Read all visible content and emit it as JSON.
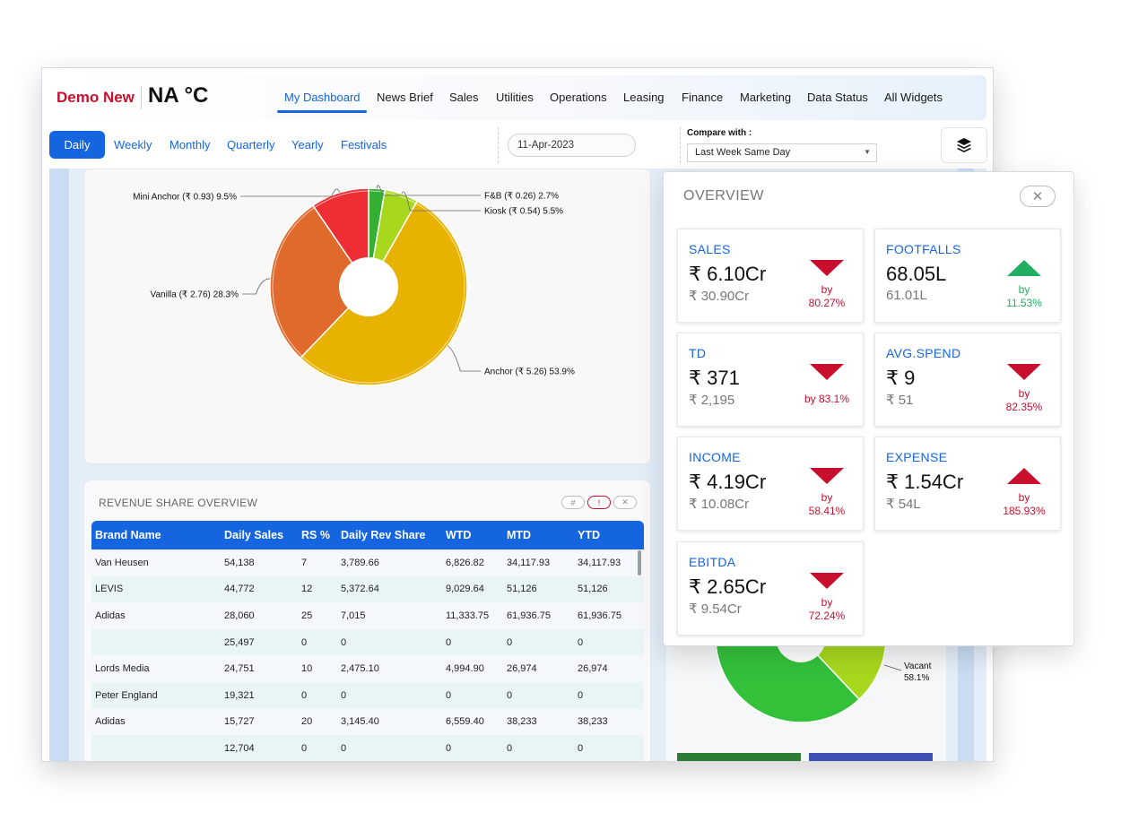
{
  "header": {
    "brand": "Demo New",
    "weather": "NA °C",
    "tabs": [
      {
        "label": "My Dashboard",
        "active": true
      },
      {
        "label": "News Brief"
      },
      {
        "label": "Sales"
      },
      {
        "label": "Utilities"
      },
      {
        "label": "Operations"
      },
      {
        "label": "Leasing"
      },
      {
        "label": "Finance"
      },
      {
        "label": "Marketing"
      },
      {
        "label": "Data Status"
      },
      {
        "label": "All Widgets"
      }
    ]
  },
  "periods": [
    "Daily",
    "Weekly",
    "Monthly",
    "Quarterly",
    "Yearly",
    "Festivals"
  ],
  "selected_period": "Daily",
  "date": "11-Apr-2023",
  "compare": {
    "label": "Compare with :",
    "value": "Last Week Same Day"
  },
  "pie_chart": {
    "slices": [
      {
        "name": "F&B",
        "value": 0.26,
        "pct": 2.7,
        "color": "#33b033",
        "label": "F&B (₹ 0.26) 2.7%"
      },
      {
        "name": "Kiosk",
        "value": 0.54,
        "pct": 5.5,
        "color": "#a8d81e",
        "label": "Kiosk (₹ 0.54) 5.5%"
      },
      {
        "name": "Anchor",
        "value": 5.26,
        "pct": 53.9,
        "color": "#e8b200",
        "label": "Anchor (₹ 5.26) 53.9%"
      },
      {
        "name": "Vanilla",
        "value": 2.76,
        "pct": 28.3,
        "color": "#e06a2c",
        "label": "Vanilla (₹ 2.76) 28.3%"
      },
      {
        "name": "Mini Anchor",
        "value": 0.93,
        "pct": 9.5,
        "color": "#ee2e35",
        "label": "Mini Anchor (₹ 0.93) 9.5%"
      }
    ]
  },
  "revenue_share": {
    "title": "REVENUE SHARE OVERVIEW",
    "controls": [
      "#",
      "!",
      "✕"
    ],
    "columns": [
      "Brand Name",
      "Daily Sales",
      "RS %",
      "Daily Rev Share",
      "WTD",
      "MTD",
      "YTD"
    ],
    "rows": [
      [
        "Van Heusen",
        "54,138",
        "7",
        "3,789.66",
        "6,826.82",
        "34,117.93",
        "34,117.93"
      ],
      [
        "LEVIS",
        "44,772",
        "12",
        "5,372.64",
        "9,029.64",
        "51,126",
        "51,126"
      ],
      [
        "Adidas",
        "28,060",
        "25",
        "7,015",
        "11,333.75",
        "61,936.75",
        "61,936.75"
      ],
      [
        "",
        "25,497",
        "0",
        "0",
        "0",
        "0",
        "0"
      ],
      [
        "Lords Media",
        "24,751",
        "10",
        "2,475.10",
        "4,994.90",
        "26,974",
        "26,974"
      ],
      [
        "Peter England",
        "19,321",
        "0",
        "0",
        "0",
        "0",
        "0"
      ],
      [
        "Adidas",
        "15,727",
        "20",
        "3,145.40",
        "6,559.40",
        "38,233",
        "38,233"
      ],
      [
        "",
        "12,704",
        "0",
        "0",
        "0",
        "0",
        "0"
      ]
    ]
  },
  "occupancy_chart": {
    "vacant_label": "Vacant",
    "vacant_pct": "58.1%",
    "vacant_value": 58.1
  },
  "overview": {
    "title": "OVERVIEW",
    "close": "✕",
    "kpis": [
      {
        "label": "SALES",
        "value": "₹ 6.10Cr",
        "compare": "₹ 30.90Cr",
        "direction": "down",
        "change": [
          "by",
          "80.27%"
        ]
      },
      {
        "label": "FOOTFALLS",
        "value": "68.05L",
        "compare": "61.01L",
        "direction": "up",
        "change": [
          "by",
          "11.53%"
        ]
      },
      {
        "label": "TD",
        "value": "₹ 371",
        "compare": "₹ 2,195",
        "direction": "down",
        "change": [
          "by 83.1%"
        ]
      },
      {
        "label": "AVG.SPEND",
        "value": "₹ 9",
        "compare": "₹ 51",
        "direction": "down",
        "change": [
          "by",
          "82.35%"
        ]
      },
      {
        "label": "INCOME",
        "value": "₹ 4.19Cr",
        "compare": "₹ 10.08Cr",
        "direction": "down",
        "change": [
          "by",
          "58.41%"
        ]
      },
      {
        "label": "EXPENSE",
        "value": "₹ 1.54Cr",
        "compare": "₹ 54L",
        "direction": "up-red",
        "change": [
          "by",
          "185.93%"
        ]
      },
      {
        "label": "EBITDA",
        "value": "₹ 2.65Cr",
        "compare": "₹ 9.54Cr",
        "direction": "down",
        "change": [
          "by",
          "72.24%"
        ]
      }
    ]
  }
}
